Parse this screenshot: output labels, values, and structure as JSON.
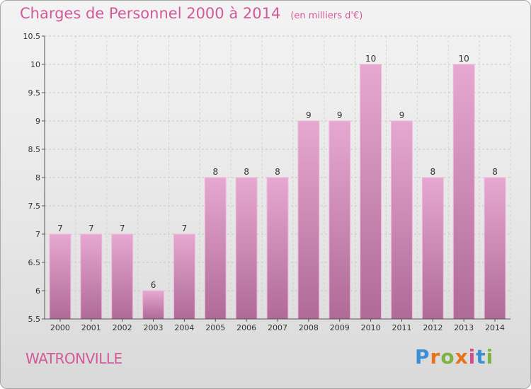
{
  "header": {
    "title": "Charges de Personnel 2000 à 2014",
    "subtitle": "(en milliers d'€)"
  },
  "footer": {
    "commune": "WATRONVILLE",
    "brand": "Proxiti",
    "brand_colors": [
      "#3a8fd6",
      "#e8731a",
      "#7cb342",
      "#e8731a",
      "#d64a8a",
      "#3a8fd6",
      "#7cb342"
    ]
  },
  "chart_data": {
    "type": "bar",
    "title": "Charges de Personnel 2000 à 2014",
    "subtitle": "(en milliers d'€)",
    "categories": [
      "2000",
      "2001",
      "2002",
      "2003",
      "2004",
      "2005",
      "2006",
      "2007",
      "2008",
      "2009",
      "2010",
      "2011",
      "2012",
      "2013",
      "2014"
    ],
    "values": [
      7,
      7,
      7,
      6,
      7,
      8,
      8,
      8,
      9,
      9,
      10,
      9,
      8,
      10,
      8
    ],
    "data_labels": [
      "7",
      "7",
      "7",
      "6",
      "7",
      "8",
      "8",
      "8",
      "9",
      "9",
      "10",
      "9",
      "8",
      "10",
      "8"
    ],
    "ylim": [
      5.5,
      10.5
    ],
    "yticks": [
      5.5,
      6,
      6.5,
      7,
      7.5,
      8,
      8.5,
      9,
      9.5,
      10,
      10.5
    ],
    "ytick_labels": [
      "5.5",
      "6",
      "6.5",
      "7",
      "7.5",
      "8",
      "8.5",
      "9",
      "9.5",
      "10",
      "10.5"
    ],
    "grid": true,
    "bar_color": "#d98cbc"
  }
}
